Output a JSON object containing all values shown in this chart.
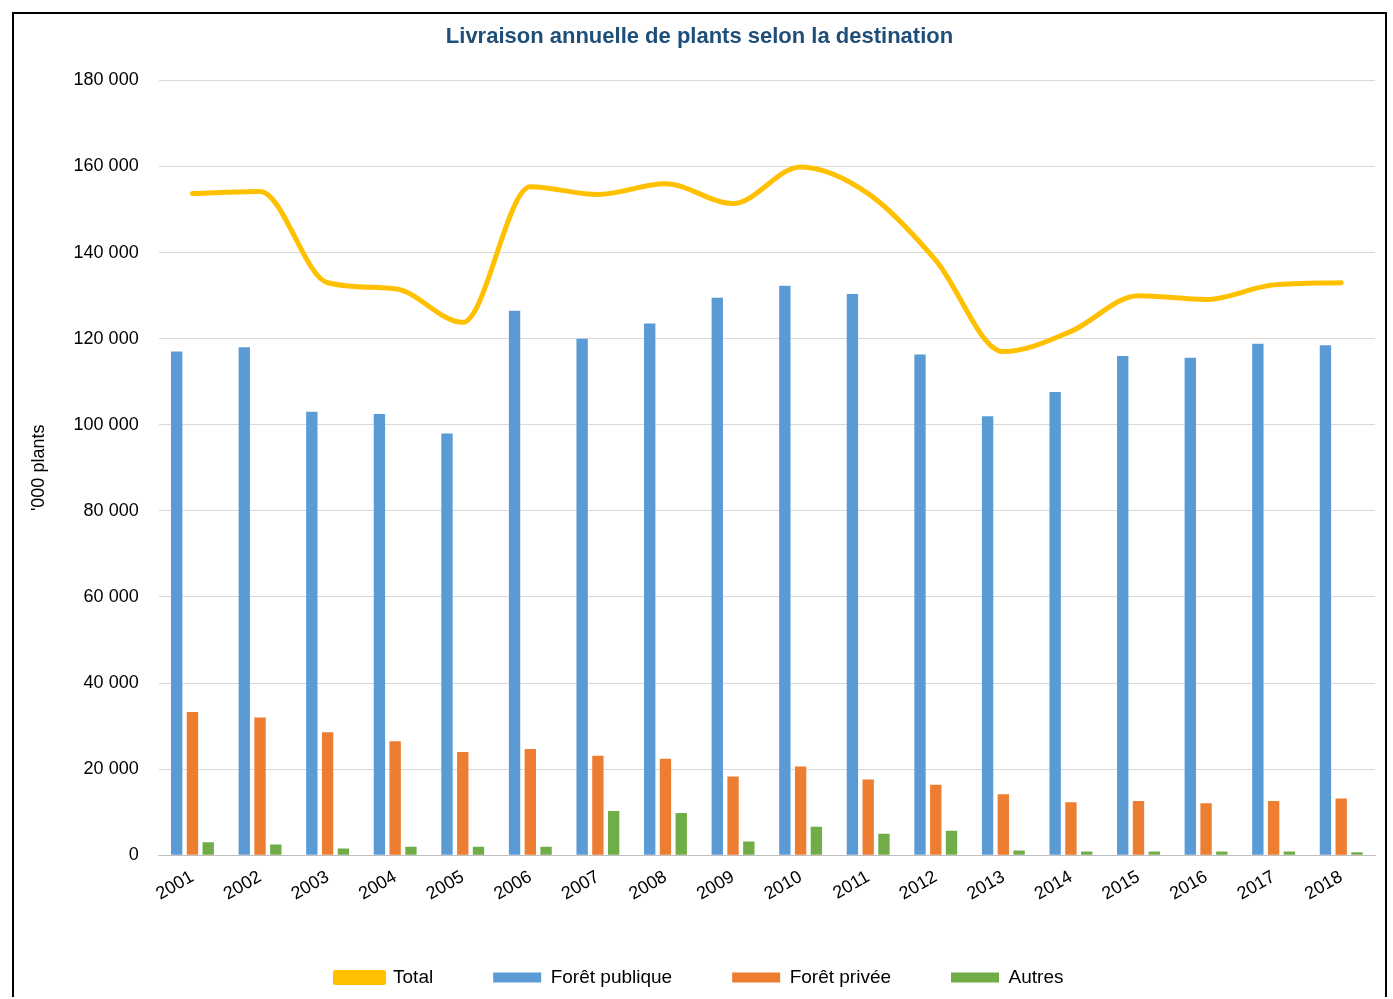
{
  "chart_data": {
    "type": "bar",
    "title": "Livraison annuelle de plants selon la destination",
    "ylabel": "'000 plants",
    "categories": [
      "2001",
      "2002",
      "2003",
      "2004",
      "2005",
      "2006",
      "2007",
      "2008",
      "2009",
      "2010",
      "2011",
      "2012",
      "2013",
      "2014",
      "2015",
      "2016",
      "2017",
      "2018"
    ],
    "series": [
      {
        "name": "Forêt publique",
        "color": "#5b9bd5",
        "values": [
          117000,
          118000,
          103000,
          102500,
          98000,
          126500,
          120000,
          123500,
          129500,
          132300,
          130400,
          116300,
          102000,
          107600,
          116000,
          115600,
          118800,
          118500
        ]
      },
      {
        "name": "Forêt privée",
        "color": "#ed7d31",
        "values": [
          33300,
          32000,
          28600,
          26500,
          24000,
          24700,
          23100,
          22400,
          18300,
          20600,
          17600,
          16400,
          14200,
          12300,
          12600,
          12100,
          12600,
          13200
        ]
      },
      {
        "name": "Autres",
        "color": "#70ad47",
        "values": [
          3000,
          2500,
          1600,
          2000,
          2000,
          2000,
          10300,
          9800,
          3200,
          6600,
          5000,
          5700,
          1100,
          900,
          900,
          900,
          900,
          700
        ]
      },
      {
        "name": "Total",
        "type": "line",
        "color": "#ffc000",
        "values": [
          153700,
          154200,
          133000,
          131600,
          123800,
          155300,
          153500,
          156000,
          151400,
          159900,
          153700,
          138200,
          117000,
          121700,
          130000,
          129100,
          132500,
          133000
        ]
      }
    ],
    "ylim": [
      0,
      180000
    ],
    "yticks": [
      {
        "value": 0,
        "label": "0"
      },
      {
        "value": 20000,
        "label": "20 000"
      },
      {
        "value": 40000,
        "label": "40 000"
      },
      {
        "value": 60000,
        "label": "60 000"
      },
      {
        "value": 80000,
        "label": "80 000"
      },
      {
        "value": 100000,
        "label": "100 000"
      },
      {
        "value": 120000,
        "label": "120 000"
      },
      {
        "value": 140000,
        "label": "140 000"
      },
      {
        "value": 160000,
        "label": "160 000"
      },
      {
        "value": 180000,
        "label": "180 000"
      }
    ],
    "grid": "y",
    "legend": "bottom",
    "marker": "none"
  }
}
